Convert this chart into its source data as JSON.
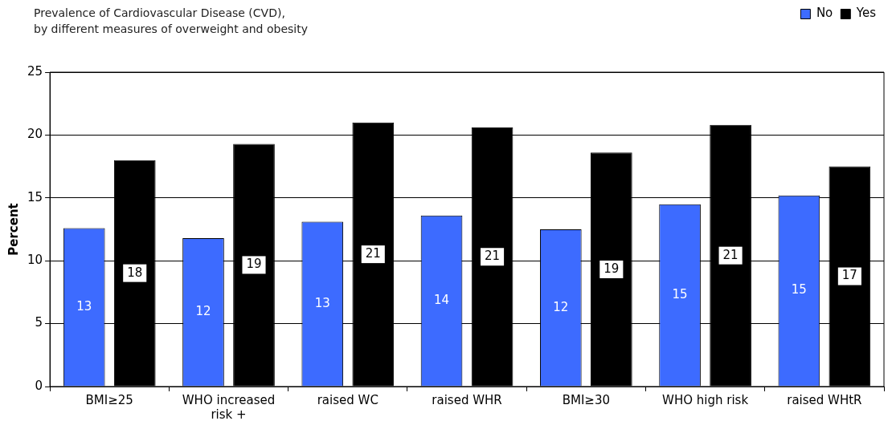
{
  "chart_data": {
    "type": "bar",
    "title": "Prevalence of Cardiovascular Disease (CVD),\nby different measures of overweight and obesity",
    "ylabel": "Percent",
    "categories": [
      "BMI≥25",
      "WHO increased risk +",
      "raised WC",
      "raised WHR",
      "BMI≥30",
      "WHO high risk",
      "raised WHtR"
    ],
    "series": [
      {
        "name": "No",
        "color": "#3d6bff",
        "values": [
          12.6,
          11.8,
          13.1,
          13.6,
          12.5,
          14.5,
          15.2
        ],
        "value_labels": [
          "13",
          "12",
          "13",
          "14",
          "12",
          "15",
          "15"
        ]
      },
      {
        "name": "Yes",
        "color": "#000000",
        "values": [
          18.0,
          19.3,
          21.0,
          20.6,
          18.6,
          20.8,
          17.5
        ],
        "value_labels": [
          "18",
          "19",
          "21",
          "21",
          "19",
          "21",
          "17"
        ]
      }
    ],
    "ylim": [
      0,
      25
    ],
    "yticks": [
      0,
      5,
      10,
      15,
      20,
      25
    ],
    "grid": "y",
    "legend": "top right"
  }
}
